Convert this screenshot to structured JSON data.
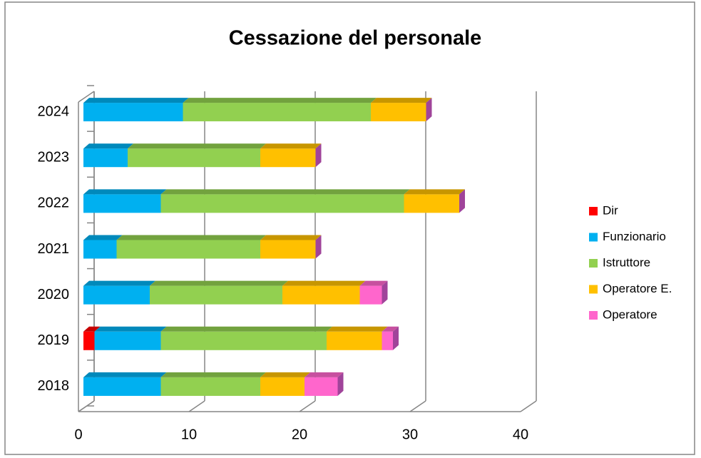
{
  "chart_data": {
    "type": "bar",
    "orientation": "horizontal",
    "stacked": true,
    "title": "Cessazione del personale",
    "categories": [
      "2018",
      "2019",
      "2020",
      "2021",
      "2022",
      "2023",
      "2024"
    ],
    "series": [
      {
        "name": "Dir",
        "color": "#ff0000",
        "values": [
          0,
          1,
          0,
          0,
          0,
          0,
          0
        ]
      },
      {
        "name": "Funzionario",
        "color": "#00b0f0",
        "values": [
          7,
          6,
          6,
          3,
          7,
          4,
          9
        ]
      },
      {
        "name": "Istruttore",
        "color": "#92d050",
        "values": [
          9,
          15,
          12,
          13,
          22,
          12,
          17
        ]
      },
      {
        "name": "Operatore E.",
        "color": "#ffc000",
        "values": [
          4,
          5,
          7,
          5,
          5,
          5,
          5
        ]
      },
      {
        "name": "Operatore",
        "color": "#ff66cc",
        "values": [
          3,
          1,
          2,
          0,
          0,
          0,
          0
        ]
      }
    ],
    "xlim": [
      0,
      40
    ],
    "xticks": [
      0,
      10,
      20,
      30,
      40
    ],
    "grid": true,
    "legend": "right"
  }
}
